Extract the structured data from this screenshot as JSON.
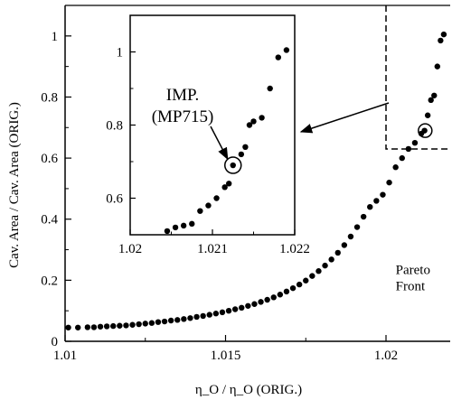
{
  "chart_data": [
    {
      "type": "scatter",
      "xlabel": "η_O / η_O (ORIG.)",
      "ylabel": "Cav. Area / Cav. Area (ORIG.)",
      "xlim": [
        1.01,
        1.022
      ],
      "ylim": [
        0,
        1.1
      ],
      "x_ticks": [
        "1.01",
        "1.015",
        "1.02"
      ],
      "y_ticks": [
        "0",
        "0.2",
        "0.4",
        "0.6",
        "0.8",
        "1"
      ],
      "grid": false,
      "series": [
        {
          "marker": "filled-circle",
          "color": "#000000",
          "points": [
            [
              1.0101,
              0.045
            ],
            [
              1.0104,
              0.045
            ],
            [
              1.0107,
              0.046
            ],
            [
              1.0109,
              0.046
            ],
            [
              1.0111,
              0.048
            ],
            [
              1.0113,
              0.049
            ],
            [
              1.0115,
              0.05
            ],
            [
              1.0117,
              0.051
            ],
            [
              1.0119,
              0.052
            ],
            [
              1.0121,
              0.054
            ],
            [
              1.0123,
              0.056
            ],
            [
              1.0125,
              0.058
            ],
            [
              1.0127,
              0.06
            ],
            [
              1.0129,
              0.063
            ],
            [
              1.0131,
              0.065
            ],
            [
              1.0133,
              0.068
            ],
            [
              1.0135,
              0.07
            ],
            [
              1.0137,
              0.073
            ],
            [
              1.0139,
              0.076
            ],
            [
              1.0141,
              0.08
            ],
            [
              1.0143,
              0.083
            ],
            [
              1.0145,
              0.087
            ],
            [
              1.0147,
              0.091
            ],
            [
              1.0149,
              0.095
            ],
            [
              1.0151,
              0.1
            ],
            [
              1.0153,
              0.105
            ],
            [
              1.0155,
              0.11
            ],
            [
              1.0157,
              0.116
            ],
            [
              1.0159,
              0.122
            ],
            [
              1.0161,
              0.129
            ],
            [
              1.0163,
              0.136
            ],
            [
              1.0165,
              0.144
            ],
            [
              1.0167,
              0.153
            ],
            [
              1.0169,
              0.163
            ],
            [
              1.0171,
              0.174
            ],
            [
              1.0173,
              0.186
            ],
            [
              1.0175,
              0.199
            ],
            [
              1.0177,
              0.214
            ],
            [
              1.0179,
              0.23
            ],
            [
              1.0181,
              0.248
            ],
            [
              1.0183,
              0.268
            ],
            [
              1.0185,
              0.29
            ],
            [
              1.0187,
              0.315
            ],
            [
              1.0189,
              0.343
            ],
            [
              1.0191,
              0.374
            ],
            [
              1.0193,
              0.408
            ],
            [
              1.0195,
              0.44
            ],
            [
              1.0197,
              0.46
            ],
            [
              1.0199,
              0.48
            ],
            [
              1.0201,
              0.52
            ],
            [
              1.0203,
              0.57
            ],
            [
              1.0205,
              0.6
            ],
            [
              1.0207,
              0.63
            ],
            [
              1.0209,
              0.65
            ],
            [
              1.0211,
              0.68
            ],
            [
              1.0212,
              0.69
            ],
            [
              1.0213,
              0.74
            ],
            [
              1.0214,
              0.79
            ],
            [
              1.0215,
              0.805
            ],
            [
              1.0216,
              0.9
            ],
            [
              1.0217,
              0.985
            ],
            [
              1.0218,
              1.005
            ]
          ]
        }
      ],
      "highlight": {
        "x": 1.02122,
        "y": 0.69
      },
      "zoom_box": {
        "x": [
          1.02,
          1.022
        ],
        "y": [
          0.63,
          1.1
        ]
      },
      "annotation": {
        "text": "Pareto\nFront",
        "x": 1.0203,
        "y": 0.22
      }
    },
    {
      "type": "scatter",
      "role": "inset",
      "xlim": [
        1.02,
        1.022
      ],
      "ylim": [
        0.5,
        1.1
      ],
      "x_ticks": [
        "1.02",
        "1.021",
        "1.022"
      ],
      "y_ticks": [
        "0.6",
        "0.8",
        "1"
      ],
      "series": [
        {
          "marker": "filled-circle",
          "color": "#000000",
          "points": [
            [
              1.02045,
              0.51
            ],
            [
              1.02055,
              0.52
            ],
            [
              1.02065,
              0.525
            ],
            [
              1.02075,
              0.53
            ],
            [
              1.02085,
              0.565
            ],
            [
              1.02095,
              0.58
            ],
            [
              1.02105,
              0.6
            ],
            [
              1.02115,
              0.63
            ],
            [
              1.0212,
              0.64
            ],
            [
              1.02125,
              0.69
            ],
            [
              1.02135,
              0.72
            ],
            [
              1.0214,
              0.74
            ],
            [
              1.02145,
              0.8
            ],
            [
              1.0215,
              0.81
            ],
            [
              1.0216,
              0.82
            ],
            [
              1.0217,
              0.9
            ],
            [
              1.0218,
              0.985
            ],
            [
              1.0219,
              1.005
            ]
          ]
        }
      ],
      "highlight": {
        "x": 1.02125,
        "y": 0.69
      },
      "annotation": {
        "text": "IMP.\n(MP715)"
      }
    }
  ]
}
